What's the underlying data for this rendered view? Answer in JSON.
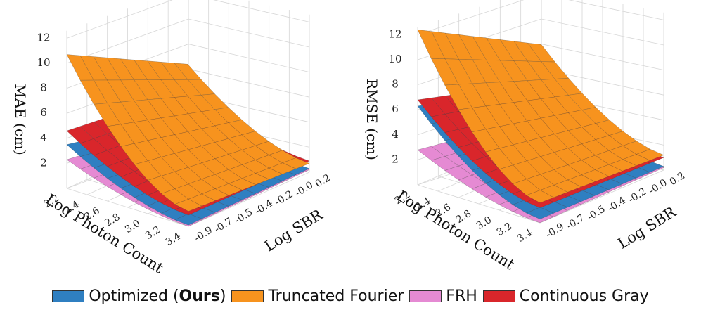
{
  "chart_data": [
    {
      "type": "surface3d",
      "zlabel": "MAE (cm)",
      "xlabel": "Log Photon Count",
      "ylabel": "Log SBR",
      "x_ticks": [
        "2.2",
        "2.4",
        "2.6",
        "2.8",
        "3.0",
        "3.2",
        "3.4"
      ],
      "y_ticks": [
        "-0.9",
        "-0.7",
        "-0.5",
        "-0.4",
        "-0.2",
        "-0.0",
        "0.2"
      ],
      "z_ticks": [
        "2",
        "4",
        "6",
        "8",
        "10",
        "12"
      ],
      "zlim": [
        0,
        12
      ],
      "series": [
        {
          "name": "FRH",
          "z_corners": {
            "front": 0.0,
            "left": 2.3,
            "right": 0.2,
            "back": 1.0
          }
        },
        {
          "name": "Optimized",
          "z_corners": {
            "front": 0.1,
            "left": 3.5,
            "right": 0.3,
            "back": 1.5
          }
        },
        {
          "name": "Continuous Gray",
          "z_corners": {
            "front": 0.9,
            "left": 4.6,
            "right": 0.9,
            "back": 3.5
          }
        },
        {
          "name": "Truncated Fourier",
          "z_corners": {
            "front": 1.2,
            "left": 10.7,
            "right": 0.7,
            "back": 5.6
          }
        }
      ]
    },
    {
      "type": "surface3d",
      "zlabel": "RMSE (cm)",
      "xlabel": "Log Photon Count",
      "ylabel": "Log SBR",
      "x_ticks": [
        "2.2",
        "2.4",
        "2.6",
        "2.8",
        "3.0",
        "3.2",
        "3.4"
      ],
      "y_ticks": [
        "-0.9",
        "-0.7",
        "-0.5",
        "-0.4",
        "-0.2",
        "-0.0",
        "0.2"
      ],
      "z_ticks": [
        "2",
        "4",
        "6",
        "8",
        "10",
        "12"
      ],
      "zlim": [
        0,
        12
      ],
      "series": [
        {
          "name": "FRH",
          "z_corners": {
            "front": 0.0,
            "left": 2.8,
            "right": 0.2,
            "back": 1.2
          }
        },
        {
          "name": "Optimized",
          "z_corners": {
            "front": 0.3,
            "left": 6.3,
            "right": 0.3,
            "back": 3.5
          }
        },
        {
          "name": "Continuous Gray",
          "z_corners": {
            "front": 1.2,
            "left": 6.8,
            "right": 1.0,
            "back": 4.0
          }
        },
        {
          "name": "Truncated Fourier",
          "z_corners": {
            "front": 1.6,
            "left": 12.4,
            "right": 1.2,
            "back": 7.0
          }
        }
      ]
    }
  ],
  "legend": {
    "items": [
      {
        "name": "optimized",
        "prefix": "Optimized (",
        "bold": "Ours",
        "suffix": ")",
        "color": "#2f7fc1"
      },
      {
        "name": "truncated-fourier",
        "label": "Truncated Fourier",
        "color": "#f7931e"
      },
      {
        "name": "frh",
        "label": "FRH",
        "color": "#e58ad3"
      },
      {
        "name": "continuous-gray",
        "label": "Continuous Gray",
        "color": "#d9262b"
      }
    ]
  }
}
